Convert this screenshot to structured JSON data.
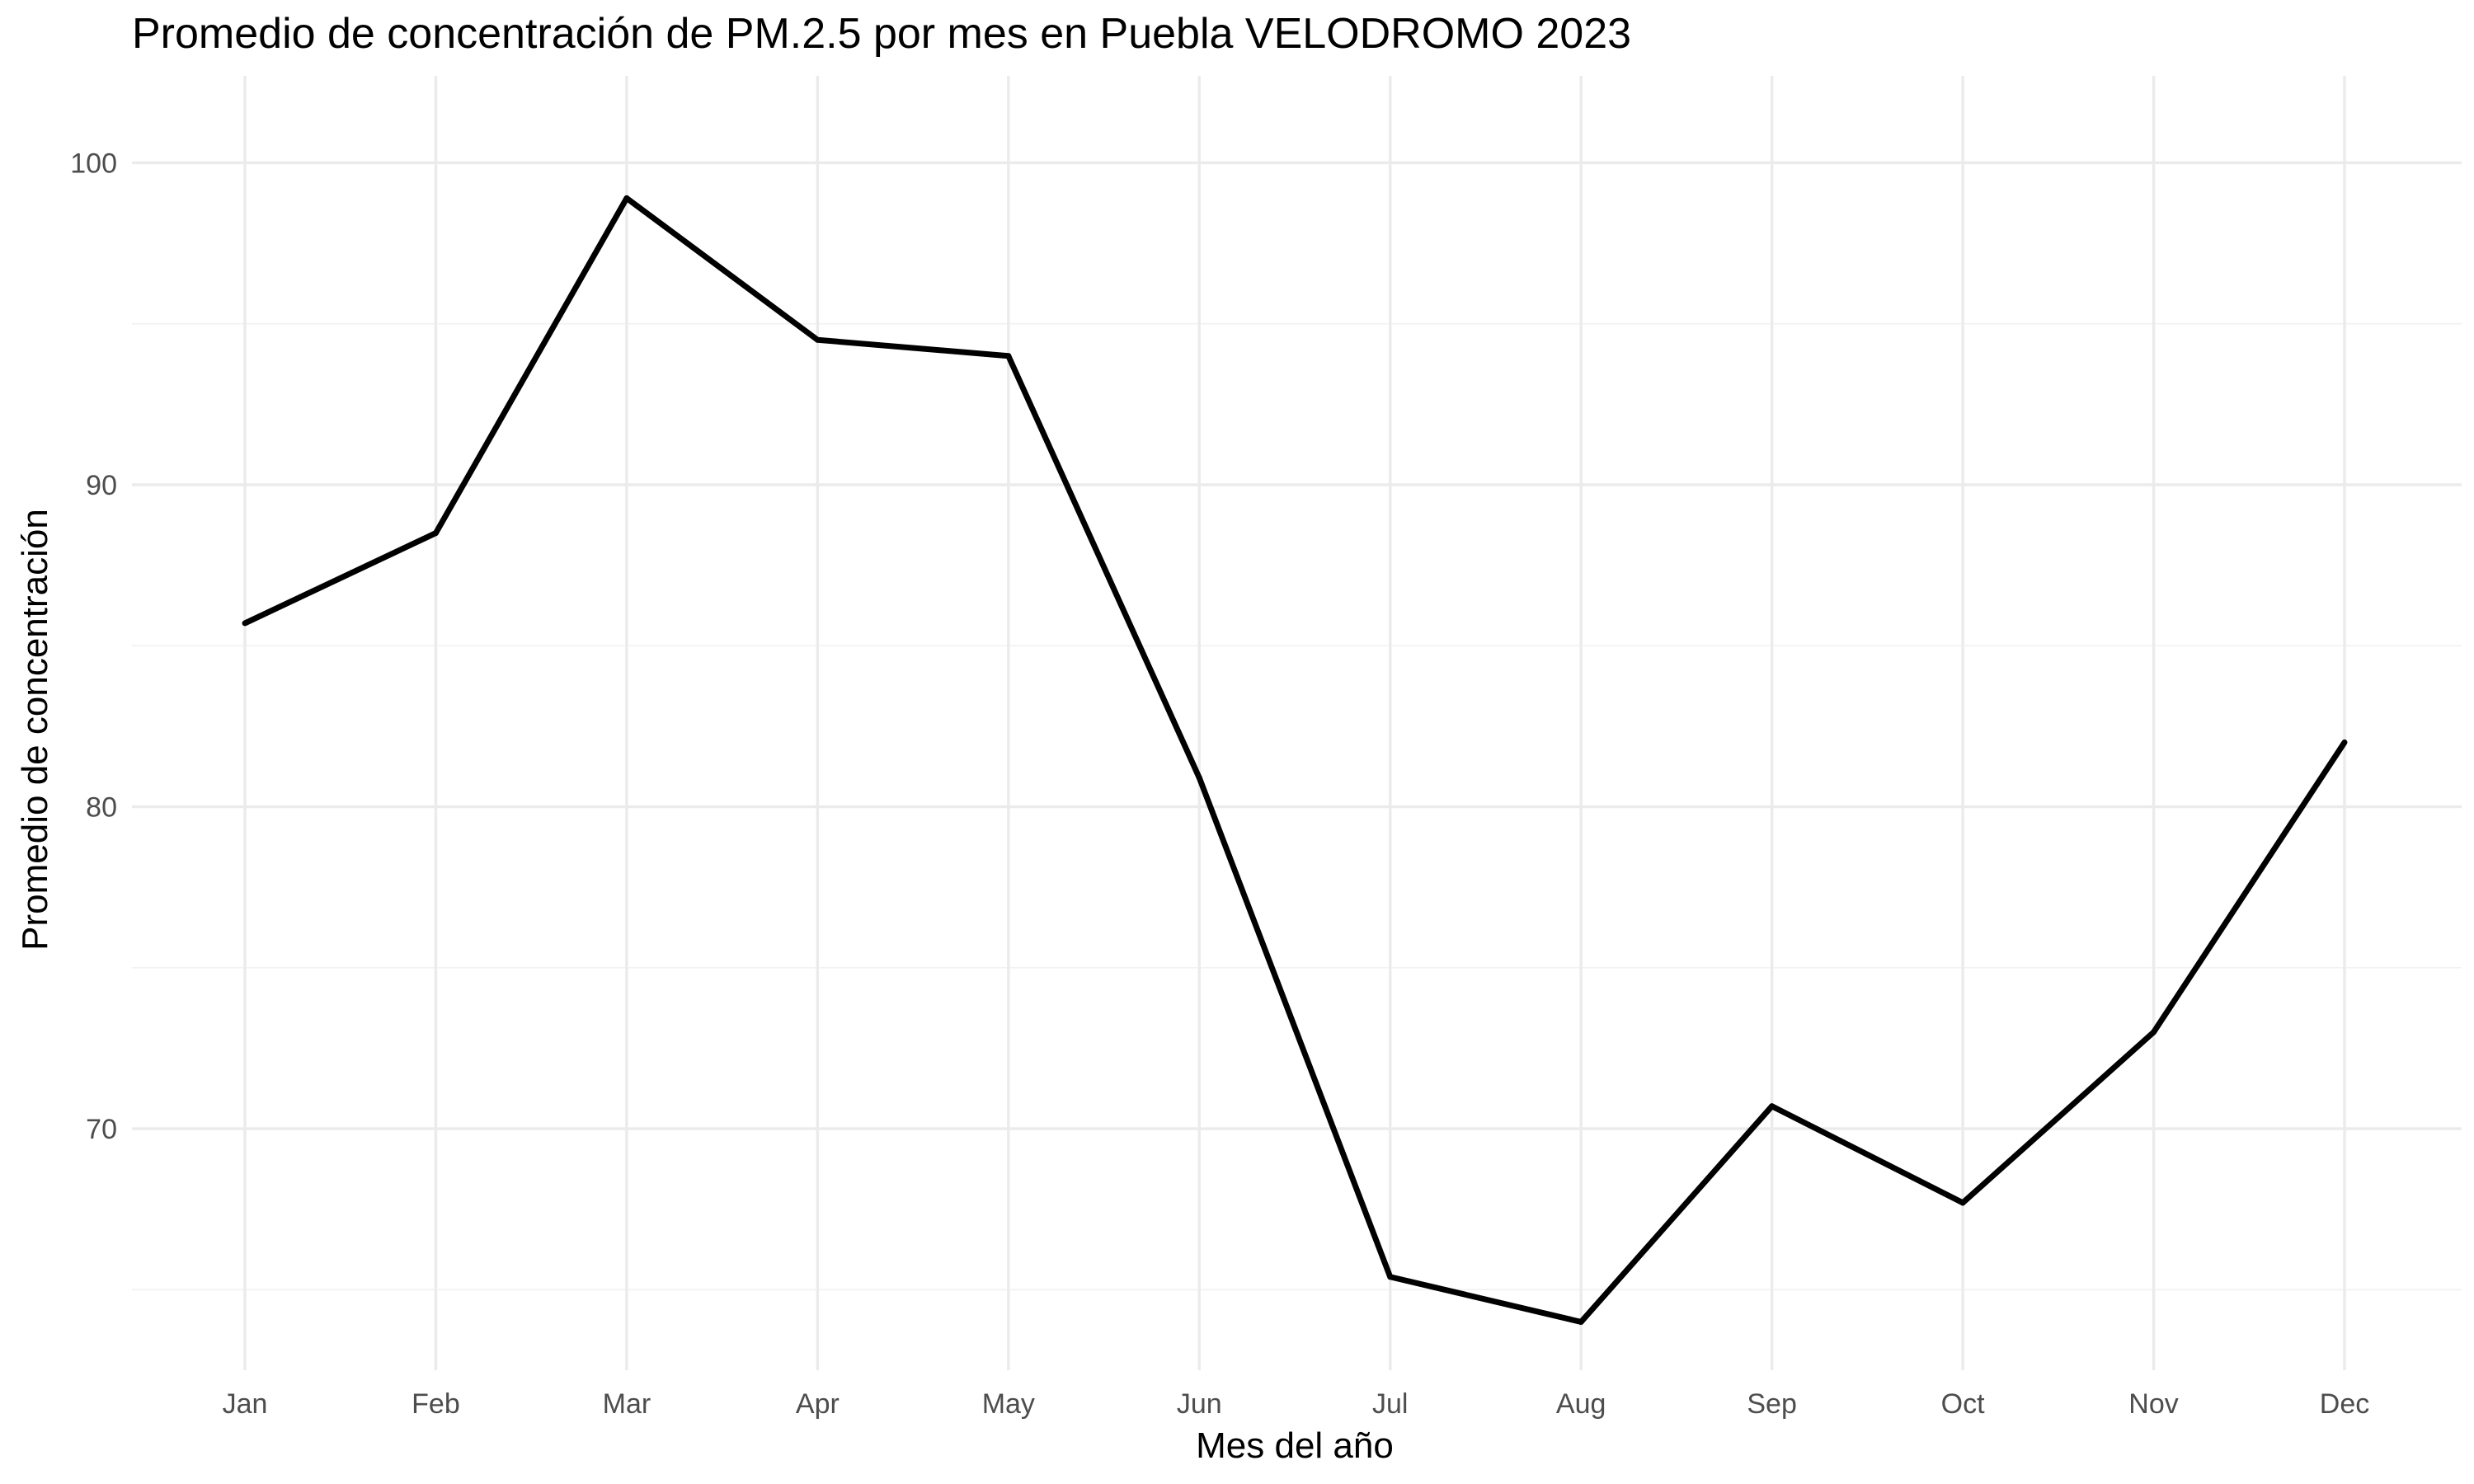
{
  "chart_data": {
    "type": "line",
    "title": "Promedio de concentración de PM.2.5 por mes en Puebla VELODROMO 2023",
    "xlabel": "Mes del año",
    "ylabel": "Promedio de concentración",
    "categories": [
      "Jan",
      "Feb",
      "Mar",
      "Apr",
      "May",
      "Jun",
      "Jul",
      "Aug",
      "Sep",
      "Oct",
      "Nov",
      "Dec"
    ],
    "series": [
      {
        "values": [
          85.7,
          88.5,
          98.9,
          94.5,
          94.0,
          80.9,
          65.4,
          64.0,
          70.7,
          67.7,
          73.0,
          82.0
        ]
      }
    ],
    "ylim": [
      62.5,
      102.7
    ],
    "yticks": [
      70,
      80,
      90,
      100
    ],
    "ytick_labels": [
      "70",
      "80",
      "90",
      "100"
    ],
    "grid": true,
    "legend": "none",
    "line_color": "#000000"
  }
}
